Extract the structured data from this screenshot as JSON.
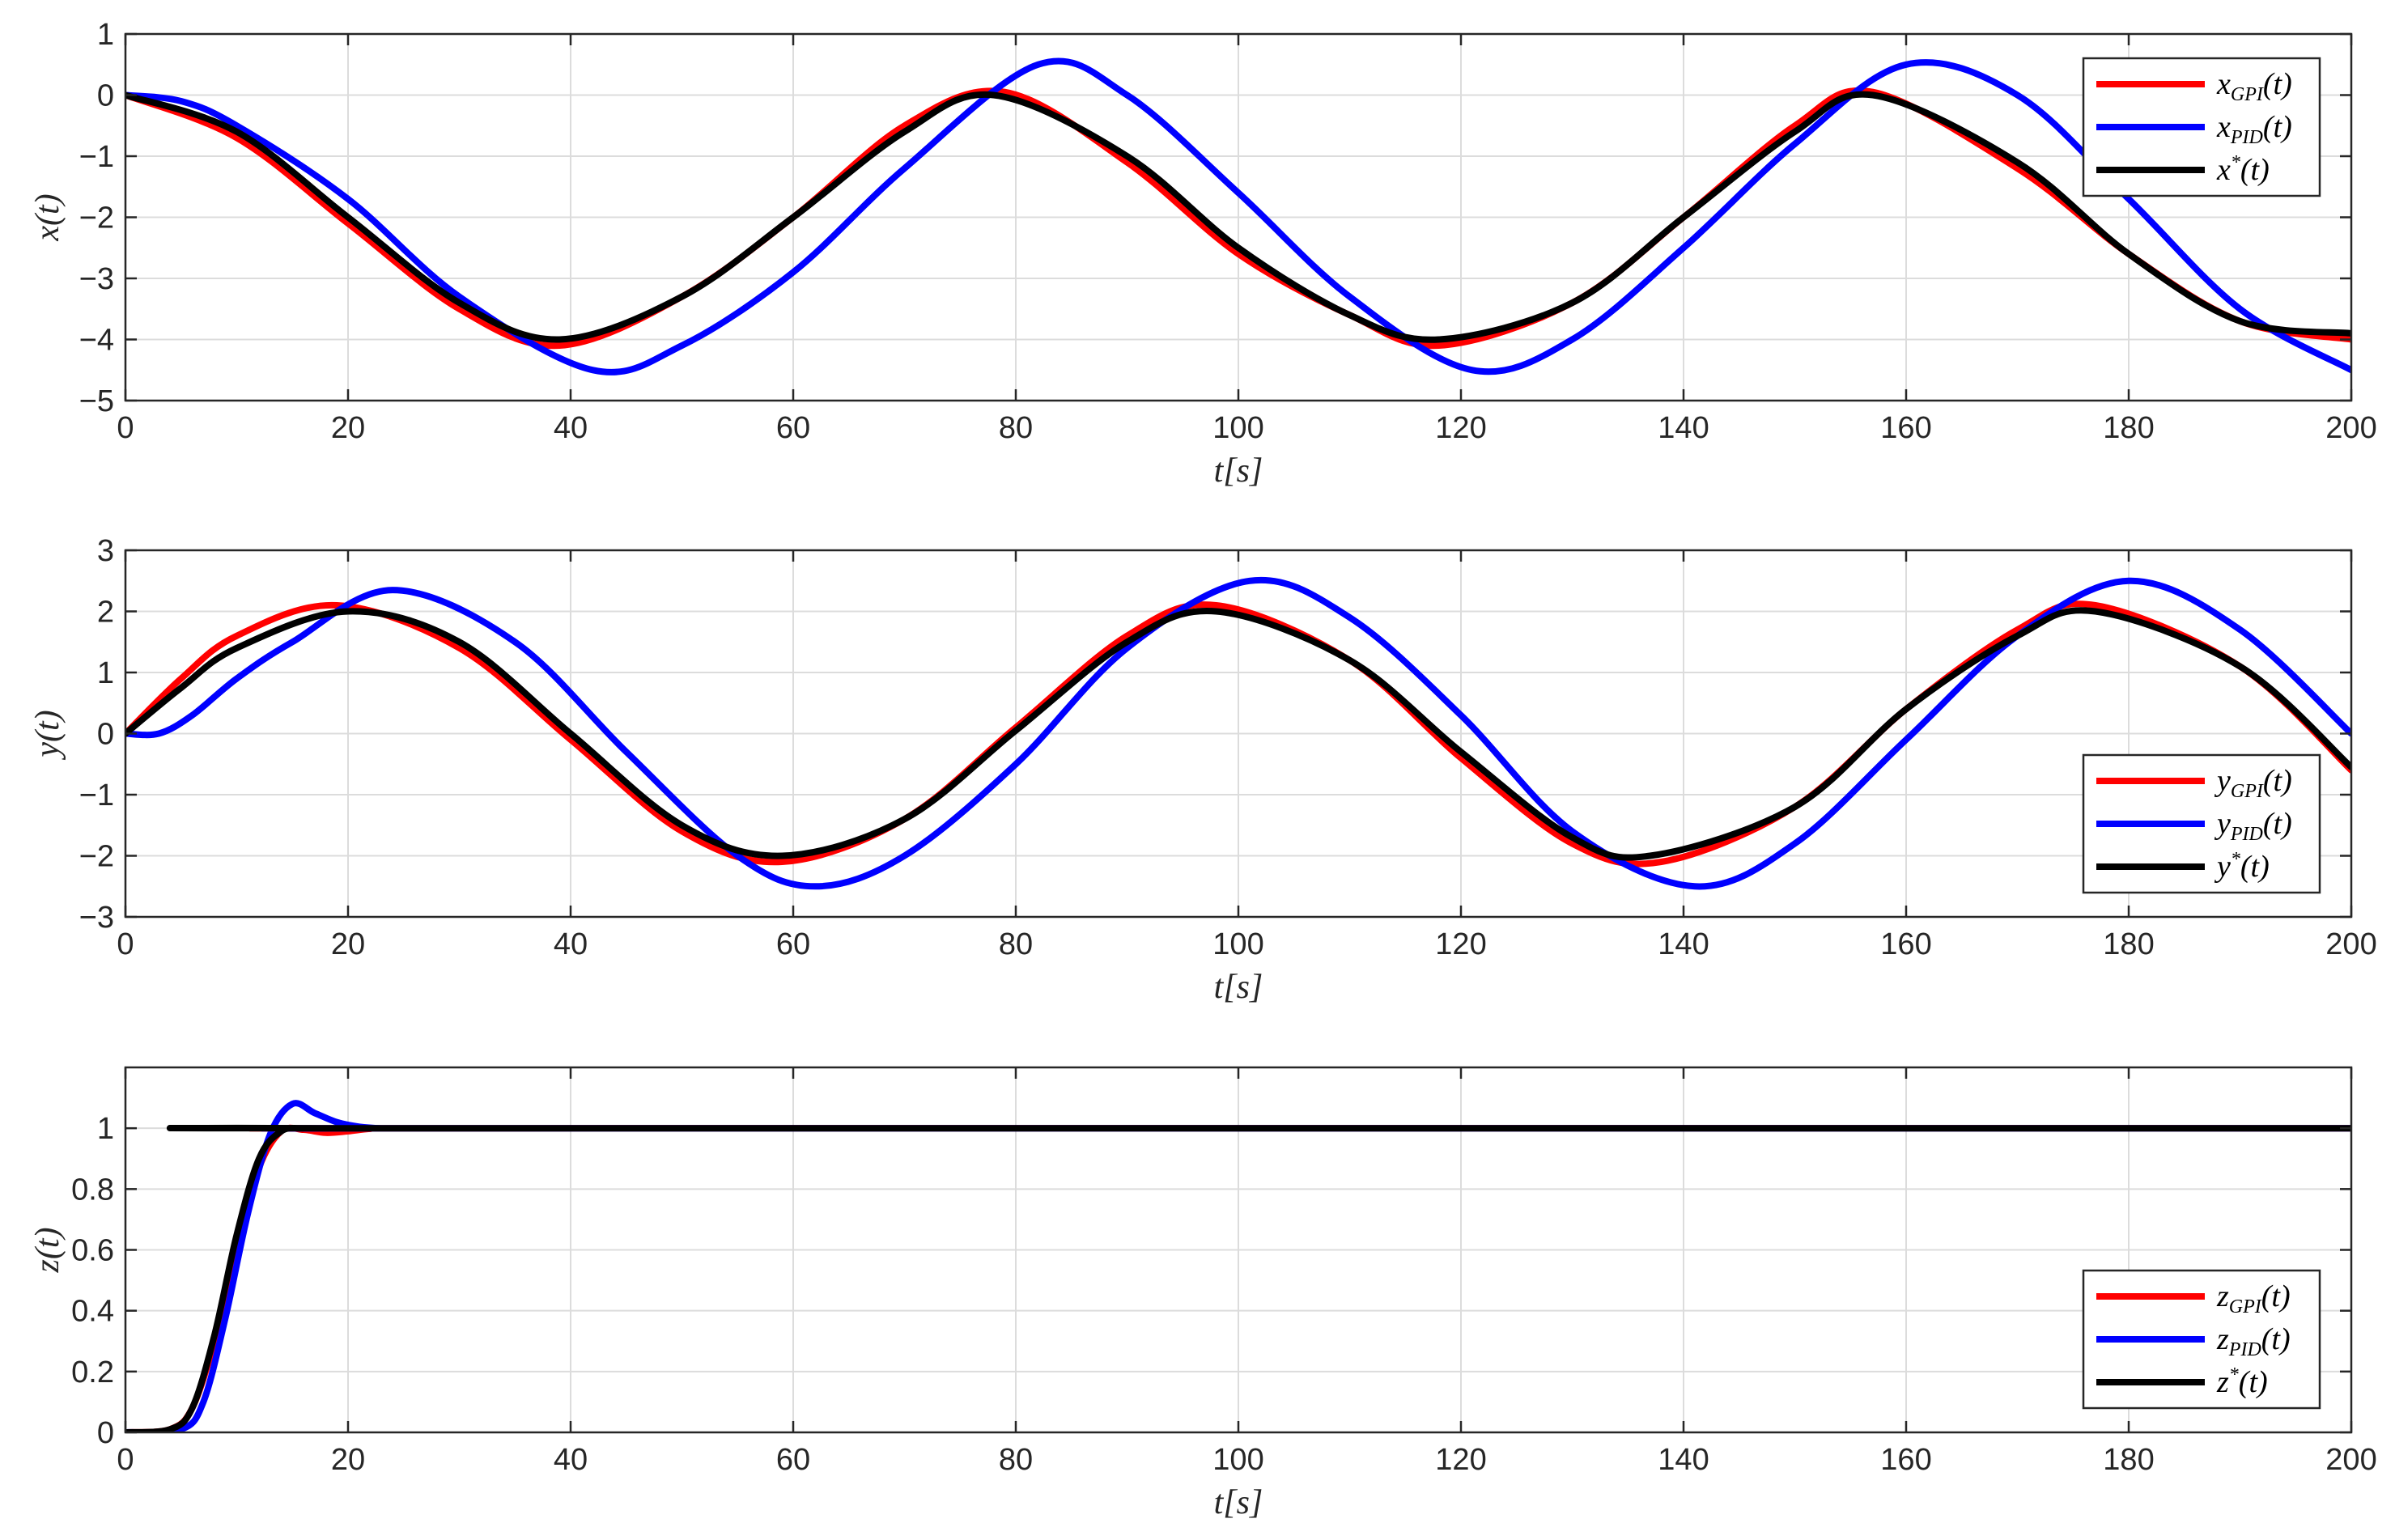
{
  "chart_data": [
    {
      "type": "line",
      "xlabel": "t[s]",
      "ylabel": "x(t)",
      "xlim": [
        0,
        200
      ],
      "ylim": [
        -5,
        1
      ],
      "xticks": [
        0,
        20,
        40,
        60,
        80,
        100,
        120,
        140,
        160,
        180,
        200
      ],
      "yticks": [
        -5,
        -4,
        -3,
        -2,
        -1,
        0,
        1
      ],
      "grid": true,
      "legend_position": "top-right",
      "series": [
        {
          "name": "x_GPI(t)",
          "label_main": "x",
          "label_sub": "GPI",
          "label_tail": "(t)",
          "color": "#ff0000",
          "x": [
            0,
            10,
            20,
            30,
            39,
            50,
            60,
            70,
            79,
            90,
            100,
            110,
            118,
            130,
            140,
            150,
            157,
            170,
            180,
            190,
            200
          ],
          "y": [
            0,
            -0.7,
            -2.1,
            -3.5,
            -4.1,
            -3.3,
            -2.0,
            -0.5,
            0.05,
            -1.1,
            -2.6,
            -3.6,
            -4.1,
            -3.4,
            -2.0,
            -0.5,
            0.05,
            -1.2,
            -2.6,
            -3.7,
            -4.0
          ]
        },
        {
          "name": "x_PID(t)",
          "label_main": "x",
          "label_sub": "PID",
          "label_tail": "(t)",
          "color": "#0000ff",
          "x": [
            0,
            5,
            10,
            20,
            30,
            42,
            50,
            60,
            70,
            82,
            90,
            100,
            110,
            121,
            130,
            140,
            150,
            160,
            170,
            180,
            190,
            200
          ],
          "y": [
            0,
            -0.1,
            -0.5,
            -1.7,
            -3.3,
            -4.5,
            -4.1,
            -2.9,
            -1.2,
            0.5,
            0.0,
            -1.6,
            -3.3,
            -4.5,
            -4.0,
            -2.5,
            -0.8,
            0.5,
            0.0,
            -1.7,
            -3.5,
            -4.5
          ]
        },
        {
          "name": "x*(t)",
          "label_main": "x",
          "label_sup": "*",
          "label_tail": "(t)",
          "color": "#000000",
          "x": [
            0,
            10,
            20,
            30,
            39,
            50,
            60,
            70,
            78,
            90,
            100,
            110,
            118,
            130,
            140,
            150,
            157,
            170,
            180,
            190,
            200
          ],
          "y": [
            0,
            -0.6,
            -2.0,
            -3.4,
            -4.0,
            -3.3,
            -2.0,
            -0.6,
            0.0,
            -1.0,
            -2.5,
            -3.6,
            -4.0,
            -3.4,
            -2.0,
            -0.6,
            0.0,
            -1.1,
            -2.6,
            -3.7,
            -3.9
          ]
        }
      ]
    },
    {
      "type": "line",
      "xlabel": "t[s]",
      "ylabel": "y(t)",
      "xlim": [
        0,
        200
      ],
      "ylim": [
        -3,
        3
      ],
      "xticks": [
        0,
        20,
        40,
        60,
        80,
        100,
        120,
        140,
        160,
        180,
        200
      ],
      "yticks": [
        -3,
        -2,
        -1,
        0,
        1,
        2,
        3
      ],
      "grid": true,
      "legend_position": "bottom-right",
      "series": [
        {
          "name": "y_GPI(t)",
          "label_main": "y",
          "label_sub": "GPI",
          "label_tail": "(t)",
          "color": "#ff0000",
          "x": [
            0,
            5,
            10,
            19,
            30,
            40,
            50,
            59,
            70,
            80,
            90,
            98,
            110,
            120,
            130,
            138,
            150,
            160,
            170,
            177,
            190,
            200
          ],
          "y": [
            0,
            0.9,
            1.6,
            2.1,
            1.4,
            -0.1,
            -1.6,
            -2.1,
            -1.4,
            0.1,
            1.6,
            2.1,
            1.2,
            -0.4,
            -1.8,
            -2.1,
            -1.2,
            0.4,
            1.7,
            2.1,
            1.1,
            -0.6
          ]
        },
        {
          "name": "y_PID(t)",
          "label_main": "y",
          "label_sub": "PID",
          "label_tail": "(t)",
          "color": "#0000ff",
          "x": [
            0,
            3,
            6,
            10,
            15,
            24,
            35,
            45,
            55,
            62,
            70,
            80,
            90,
            101,
            110,
            120,
            130,
            141,
            150,
            160,
            170,
            180,
            190,
            200
          ],
          "y": [
            0,
            0.0,
            0.3,
            0.9,
            1.5,
            2.35,
            1.5,
            -0.3,
            -2.0,
            -2.5,
            -2.0,
            -0.5,
            1.4,
            2.5,
            1.9,
            0.3,
            -1.6,
            -2.5,
            -1.8,
            -0.1,
            1.6,
            2.5,
            1.7,
            0.0
          ]
        },
        {
          "name": "y*(t)",
          "label_main": "y",
          "label_sup": "*",
          "label_tail": "(t)",
          "color": "#000000",
          "x": [
            0,
            5,
            10,
            20,
            30,
            40,
            50,
            59,
            70,
            80,
            90,
            98,
            110,
            120,
            130,
            137,
            150,
            160,
            170,
            177,
            190,
            200
          ],
          "y": [
            0,
            0.75,
            1.4,
            2.0,
            1.5,
            0.0,
            -1.5,
            -2.0,
            -1.4,
            0.05,
            1.5,
            2.0,
            1.2,
            -0.3,
            -1.7,
            -2.0,
            -1.2,
            0.4,
            1.6,
            2.0,
            1.1,
            -0.55
          ]
        }
      ]
    },
    {
      "type": "line",
      "xlabel": "t[s]",
      "ylabel": "z(t)",
      "xlim": [
        0,
        200
      ],
      "ylim": [
        0,
        1.2
      ],
      "xticks": [
        0,
        20,
        40,
        60,
        80,
        100,
        120,
        140,
        160,
        180,
        200
      ],
      "yticks": [
        0,
        0.2,
        0.4,
        0.6,
        0.8,
        1
      ],
      "grid": true,
      "legend_position": "bottom-right",
      "series": [
        {
          "name": "z_GPI(t)",
          "label_main": "z",
          "label_sub": "GPI",
          "label_tail": "(t)",
          "color": "#ff0000",
          "x": [
            0,
            4,
            6,
            8,
            10,
            12,
            14,
            16,
            18,
            20,
            22,
            25,
            200
          ],
          "y": [
            0,
            0.01,
            0.08,
            0.3,
            0.6,
            0.87,
            0.99,
            0.995,
            0.985,
            0.99,
            0.998,
            1.0,
            1.0
          ]
        },
        {
          "name": "z_PID(t)",
          "label_main": "z",
          "label_sub": "PID",
          "label_tail": "(t)",
          "color": "#0000ff",
          "x": [
            0,
            5,
            7,
            9,
            11,
            13,
            15,
            17,
            19,
            21,
            23,
            26,
            200
          ],
          "y": [
            0,
            0.01,
            0.1,
            0.38,
            0.72,
            0.98,
            1.08,
            1.05,
            1.02,
            1.005,
            1.0,
            1.0,
            1.0
          ]
        },
        {
          "name": "z*(t)",
          "label_main": "z",
          "label_sup": "*",
          "label_tail": "(t)",
          "color": "#000000",
          "x": [
            0,
            4,
            6,
            8,
            10,
            12,
            14,
            16,
            18,
            200
          ],
          "y": [
            0,
            0.01,
            0.08,
            0.32,
            0.65,
            0.9,
            0.99,
            1.0,
            1.0,
            1.0
          ]
        }
      ]
    }
  ]
}
